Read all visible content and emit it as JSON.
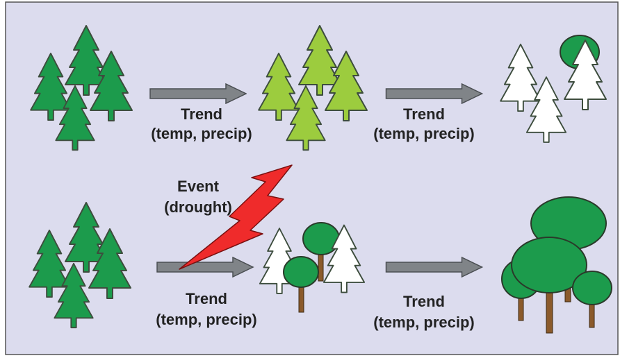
{
  "rows": [
    {
      "transitions": [
        {
          "label": "Trend",
          "detail": "(temp, precip)"
        },
        {
          "label": "Trend",
          "detail": "(temp, precip)"
        }
      ]
    },
    {
      "transitions": [
        {
          "label": "Trend",
          "detail": "(temp, precip)"
        },
        {
          "label": "Trend",
          "detail": "(temp, precip)"
        }
      ]
    }
  ],
  "event": {
    "label": "Event",
    "detail": "(drought)"
  }
}
